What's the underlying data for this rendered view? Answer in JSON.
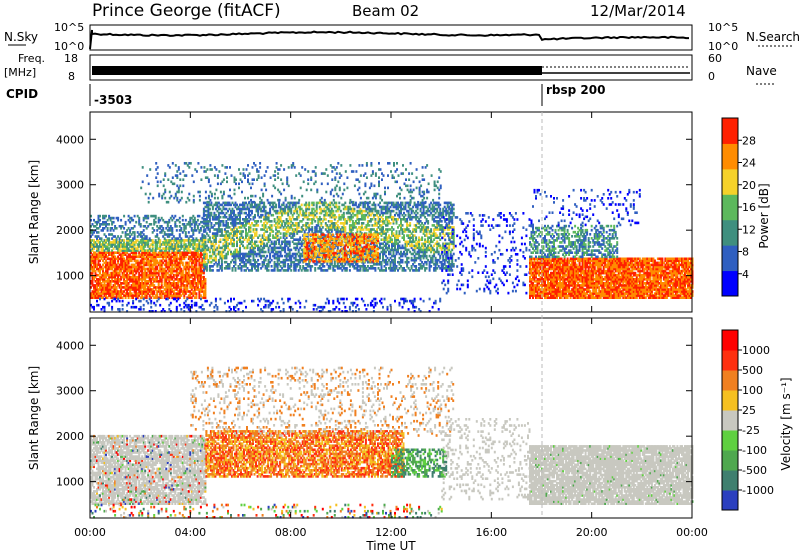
{
  "header": {
    "station": "Prince George (fitACF)",
    "beam": "Beam 02",
    "date": "12/Mar/2014"
  },
  "top_panels": {
    "nsky_label": "N.Sky",
    "nsearch_label": "N.Search",
    "nsky_ticks": [
      "10^5",
      "10^0"
    ],
    "nsearch_ticks": [
      "10^5",
      "10^0"
    ],
    "freq_label_line1": "Freq.",
    "freq_label_line2": "[MHz]",
    "freq_ticks": [
      "18",
      "8"
    ],
    "nave_label": "Nave",
    "nave_ticks": [
      "60",
      "0"
    ],
    "cpid_label": "CPID",
    "cpid_values": [
      {
        "time_h": 0.0,
        "label": "-3503"
      },
      {
        "time_h": 18.0,
        "label": "rbsp 200"
      }
    ]
  },
  "chart_data": [
    {
      "type": "heatmap",
      "name": "power-panel",
      "ylabel": "Slant Range [km]",
      "xlabel": "",
      "xlim": [
        0,
        24
      ],
      "ylim": [
        200,
        4600
      ],
      "yticks": [
        "1000",
        "2000",
        "3000",
        "4000"
      ],
      "colorbar": {
        "label": "Power [dB]",
        "ticks": [
          "4",
          "8",
          "12",
          "16",
          "20",
          "24",
          "28"
        ],
        "colors": [
          "#0000ff",
          "#2f5fc0",
          "#3f8f7f",
          "#5cb85c",
          "#f5d22a",
          "#ff8c00",
          "#ff2000"
        ]
      },
      "regions": [
        {
          "t0": 0.0,
          "t1": 4.5,
          "r0": 500,
          "r1": 1800,
          "level": "high"
        },
        {
          "t0": 4.5,
          "t1": 7.5,
          "r0": 1200,
          "r1": 2500,
          "level": "mid"
        },
        {
          "t0": 8.0,
          "t1": 14.5,
          "r0": 1200,
          "r1": 2400,
          "level": "mid"
        },
        {
          "t0": 17.5,
          "t1": 24.0,
          "r0": 500,
          "r1": 1400,
          "level": "high"
        }
      ]
    },
    {
      "type": "heatmap",
      "name": "velocity-panel",
      "ylabel": "Slant Range [km]",
      "xlabel": "Time UT",
      "xlim": [
        0,
        24
      ],
      "ylim": [
        200,
        4600
      ],
      "yticks": [
        "1000",
        "2000",
        "3000",
        "4000"
      ],
      "xticks": [
        "00:00",
        "04:00",
        "08:00",
        "12:00",
        "16:00",
        "20:00",
        "00:00"
      ],
      "colorbar": {
        "label": "Velocity [m s⁻¹]",
        "ticks": [
          "1000",
          "500",
          "100",
          "25",
          "-25",
          "-100",
          "-500",
          "-1000"
        ],
        "colors": [
          "#2b3fbf",
          "#3f7f6f",
          "#4fa84f",
          "#5fd040",
          "#c8c8c0",
          "#f5c020",
          "#f08020",
          "#ff3010",
          "#ff0000"
        ]
      }
    }
  ]
}
